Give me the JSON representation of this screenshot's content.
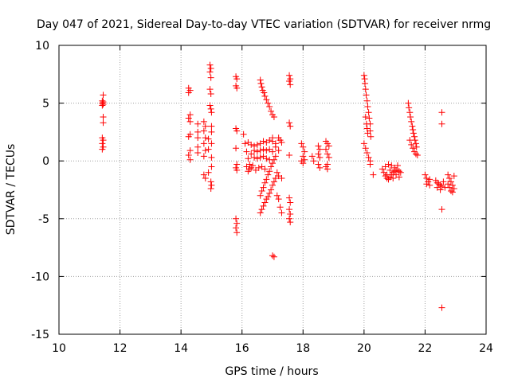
{
  "chart_data": {
    "type": "scatter",
    "title": "Day 047 of 2021, Sidereal Day-to-day VTEC variation (SDTVAR) for receiver nrmg",
    "xlabel": "GPS time / hours",
    "ylabel": "SDTVAR / TECUs",
    "xlim": [
      10,
      24
    ],
    "ylim": [
      -15,
      10
    ],
    "x_ticks": [
      10,
      12,
      14,
      16,
      18,
      20,
      22,
      24
    ],
    "y_ticks": [
      -15,
      -10,
      -5,
      0,
      5,
      10
    ],
    "grid": true,
    "marker": "+",
    "marker_color": "#ff0000",
    "series": [
      {
        "name": "SDTVAR",
        "points": [
          [
            11.45,
            5.7
          ],
          [
            11.42,
            5.2
          ],
          [
            11.45,
            5.1
          ],
          [
            11.42,
            5.0
          ],
          [
            11.45,
            4.9
          ],
          [
            11.42,
            4.8
          ],
          [
            11.45,
            3.8
          ],
          [
            11.45,
            3.3
          ],
          [
            11.42,
            2.0
          ],
          [
            11.45,
            1.8
          ],
          [
            11.42,
            1.5
          ],
          [
            11.45,
            1.2
          ],
          [
            11.42,
            1.0
          ],
          [
            14.25,
            6.3
          ],
          [
            14.3,
            6.1
          ],
          [
            14.25,
            5.9
          ],
          [
            14.3,
            4.0
          ],
          [
            14.25,
            3.7
          ],
          [
            14.3,
            3.4
          ],
          [
            14.3,
            2.3
          ],
          [
            14.25,
            2.1
          ],
          [
            14.3,
            0.9
          ],
          [
            14.25,
            0.5
          ],
          [
            14.3,
            0.1
          ],
          [
            14.55,
            3.2
          ],
          [
            14.55,
            2.5
          ],
          [
            14.55,
            2.0
          ],
          [
            14.55,
            1.2
          ],
          [
            14.55,
            0.7
          ],
          [
            14.75,
            3.4
          ],
          [
            14.8,
            3.0
          ],
          [
            14.75,
            2.6
          ],
          [
            14.8,
            2.0
          ],
          [
            14.75,
            1.5
          ],
          [
            14.8,
            0.9
          ],
          [
            14.75,
            0.4
          ],
          [
            14.75,
            -1.2
          ],
          [
            14.8,
            -1.5
          ],
          [
            14.9,
            -1.0
          ],
          [
            14.9,
            1.0
          ],
          [
            14.9,
            1.9
          ],
          [
            14.95,
            8.3
          ],
          [
            14.98,
            8.0
          ],
          [
            14.95,
            7.7
          ],
          [
            14.98,
            7.2
          ],
          [
            14.95,
            6.2
          ],
          [
            14.98,
            5.8
          ],
          [
            14.95,
            4.8
          ],
          [
            14.98,
            4.5
          ],
          [
            15.0,
            4.2
          ],
          [
            15.0,
            3.0
          ],
          [
            15.0,
            2.5
          ],
          [
            15.0,
            1.5
          ],
          [
            15.0,
            0.3
          ],
          [
            15.0,
            -0.5
          ],
          [
            14.98,
            -1.8
          ],
          [
            15.0,
            -2.1
          ],
          [
            14.98,
            -2.4
          ],
          [
            15.8,
            7.3
          ],
          [
            15.83,
            7.1
          ],
          [
            15.8,
            6.5
          ],
          [
            15.83,
            6.3
          ],
          [
            15.8,
            2.8
          ],
          [
            15.83,
            2.6
          ],
          [
            15.8,
            1.1
          ],
          [
            15.83,
            -0.3
          ],
          [
            15.8,
            -0.6
          ],
          [
            15.83,
            -0.8
          ],
          [
            15.8,
            -5.0
          ],
          [
            15.83,
            -5.4
          ],
          [
            15.8,
            -5.8
          ],
          [
            15.83,
            -6.2
          ],
          [
            16.05,
            2.3
          ],
          [
            16.1,
            1.5
          ],
          [
            16.15,
            0.8
          ],
          [
            16.2,
            0.2
          ],
          [
            16.25,
            -0.3
          ],
          [
            16.3,
            -0.6
          ],
          [
            16.15,
            -0.5
          ],
          [
            16.2,
            -0.9
          ],
          [
            16.25,
            -0.7
          ],
          [
            16.35,
            -0.4
          ],
          [
            16.2,
            1.6
          ],
          [
            16.3,
            1.4
          ],
          [
            16.4,
            1.3
          ],
          [
            16.5,
            1.4
          ],
          [
            16.6,
            1.5
          ],
          [
            16.7,
            1.7
          ],
          [
            16.8,
            1.6
          ],
          [
            16.3,
            0.6
          ],
          [
            16.4,
            0.3
          ],
          [
            16.5,
            0.2
          ],
          [
            16.6,
            0.3
          ],
          [
            16.7,
            0.4
          ],
          [
            16.8,
            0.2
          ],
          [
            16.9,
            0.1
          ],
          [
            16.4,
            0.9
          ],
          [
            16.5,
            0.8
          ],
          [
            16.6,
            0.9
          ],
          [
            16.7,
            1.0
          ],
          [
            16.8,
            0.9
          ],
          [
            16.9,
            1.0
          ],
          [
            17.0,
            0.8
          ],
          [
            16.45,
            -0.8
          ],
          [
            16.55,
            -0.6
          ],
          [
            16.65,
            -0.5
          ],
          [
            16.75,
            -0.7
          ],
          [
            16.9,
            1.8
          ],
          [
            17.0,
            1.7
          ],
          [
            17.1,
            1.5
          ],
          [
            17.0,
            2.0
          ],
          [
            17.1,
            1.2
          ],
          [
            17.2,
            0.9
          ],
          [
            16.6,
            7.0
          ],
          [
            16.62,
            6.7
          ],
          [
            16.65,
            6.4
          ],
          [
            16.68,
            6.1
          ],
          [
            16.72,
            5.9
          ],
          [
            16.75,
            5.6
          ],
          [
            16.8,
            5.3
          ],
          [
            16.85,
            5.0
          ],
          [
            16.9,
            4.7
          ],
          [
            16.95,
            4.3
          ],
          [
            17.0,
            4.0
          ],
          [
            17.05,
            3.8
          ],
          [
            16.6,
            -4.5
          ],
          [
            16.65,
            -4.2
          ],
          [
            16.7,
            -3.9
          ],
          [
            16.75,
            -3.6
          ],
          [
            16.8,
            -3.3
          ],
          [
            16.85,
            -3.1
          ],
          [
            16.9,
            -2.8
          ],
          [
            16.95,
            -2.5
          ],
          [
            17.0,
            -2.1
          ],
          [
            17.05,
            -1.8
          ],
          [
            17.1,
            -1.5
          ],
          [
            16.6,
            -3.0
          ],
          [
            16.65,
            -2.6
          ],
          [
            16.7,
            -2.3
          ],
          [
            16.75,
            -1.9
          ],
          [
            16.8,
            -1.6
          ],
          [
            16.85,
            -1.2
          ],
          [
            16.9,
            -0.9
          ],
          [
            16.95,
            -0.5
          ],
          [
            17.0,
            -0.2
          ],
          [
            17.05,
            0.1
          ],
          [
            17.1,
            0.4
          ],
          [
            17.0,
            -8.2
          ],
          [
            17.05,
            -8.3
          ],
          [
            17.15,
            -3.0
          ],
          [
            17.2,
            -3.3
          ],
          [
            17.25,
            -4.0
          ],
          [
            17.3,
            -4.5
          ],
          [
            17.15,
            -1.0
          ],
          [
            17.2,
            -1.3
          ],
          [
            17.3,
            -1.5
          ],
          [
            17.2,
            2.0
          ],
          [
            17.25,
            1.8
          ],
          [
            17.3,
            1.6
          ],
          [
            17.55,
            7.4
          ],
          [
            17.58,
            7.1
          ],
          [
            17.55,
            6.9
          ],
          [
            17.58,
            6.6
          ],
          [
            17.55,
            3.3
          ],
          [
            17.58,
            3.0
          ],
          [
            17.55,
            0.5
          ],
          [
            17.55,
            -3.2
          ],
          [
            17.58,
            -3.6
          ],
          [
            17.55,
            -4.2
          ],
          [
            17.58,
            -4.6
          ],
          [
            17.55,
            -5.0
          ],
          [
            17.58,
            -5.3
          ],
          [
            17.95,
            1.5
          ],
          [
            18.0,
            1.2
          ],
          [
            18.05,
            0.8
          ],
          [
            18.0,
            0.4
          ],
          [
            18.05,
            0.1
          ],
          [
            18.0,
            -0.2
          ],
          [
            17.95,
            0.0
          ],
          [
            18.3,
            0.4
          ],
          [
            18.35,
            0.0
          ],
          [
            18.5,
            1.3
          ],
          [
            18.55,
            1.0
          ],
          [
            18.5,
            0.6
          ],
          [
            18.55,
            0.3
          ],
          [
            18.5,
            -0.3
          ],
          [
            18.55,
            -0.6
          ],
          [
            18.75,
            1.7
          ],
          [
            18.8,
            1.5
          ],
          [
            18.85,
            1.3
          ],
          [
            18.75,
            1.0
          ],
          [
            18.8,
            0.6
          ],
          [
            18.85,
            0.3
          ],
          [
            18.8,
            -0.3
          ],
          [
            18.75,
            -0.5
          ],
          [
            18.8,
            -0.7
          ],
          [
            20.0,
            7.4
          ],
          [
            20.02,
            7.1
          ],
          [
            20.03,
            6.7
          ],
          [
            20.05,
            6.2
          ],
          [
            20.07,
            5.7
          ],
          [
            20.1,
            5.2
          ],
          [
            20.12,
            4.7
          ],
          [
            20.15,
            4.2
          ],
          [
            20.17,
            3.7
          ],
          [
            20.2,
            3.2
          ],
          [
            20.2,
            2.6
          ],
          [
            20.22,
            2.1
          ],
          [
            20.05,
            3.8
          ],
          [
            20.08,
            3.2
          ],
          [
            20.1,
            2.8
          ],
          [
            20.12,
            2.4
          ],
          [
            20.0,
            1.5
          ],
          [
            20.05,
            1.1
          ],
          [
            20.1,
            0.7
          ],
          [
            20.15,
            0.3
          ],
          [
            20.2,
            0.0
          ],
          [
            20.2,
            -0.3
          ],
          [
            20.3,
            -1.2
          ],
          [
            20.6,
            -0.7
          ],
          [
            20.65,
            -1.0
          ],
          [
            20.7,
            -1.3
          ],
          [
            20.75,
            -1.5
          ],
          [
            20.8,
            -1.6
          ],
          [
            20.85,
            -1.4
          ],
          [
            20.9,
            -1.2
          ],
          [
            20.95,
            -1.0
          ],
          [
            21.0,
            -0.9
          ],
          [
            21.05,
            -0.8
          ],
          [
            21.1,
            -0.8
          ],
          [
            21.15,
            -0.9
          ],
          [
            21.2,
            -1.0
          ],
          [
            20.7,
            -0.5
          ],
          [
            20.8,
            -0.3
          ],
          [
            20.9,
            -0.4
          ],
          [
            21.0,
            -0.6
          ],
          [
            21.1,
            -0.4
          ],
          [
            20.75,
            -1.2
          ],
          [
            20.85,
            -0.8
          ],
          [
            20.95,
            -1.5
          ],
          [
            21.05,
            -1.2
          ],
          [
            21.15,
            -1.4
          ],
          [
            21.45,
            5.0
          ],
          [
            21.47,
            4.6
          ],
          [
            21.5,
            4.2
          ],
          [
            21.52,
            3.8
          ],
          [
            21.55,
            3.4
          ],
          [
            21.58,
            3.0
          ],
          [
            21.6,
            2.7
          ],
          [
            21.62,
            2.4
          ],
          [
            21.65,
            2.1
          ],
          [
            21.67,
            1.8
          ],
          [
            21.7,
            1.5
          ],
          [
            21.72,
            1.2
          ],
          [
            21.5,
            1.8
          ],
          [
            21.55,
            1.4
          ],
          [
            21.6,
            1.1
          ],
          [
            21.65,
            0.8
          ],
          [
            21.7,
            0.6
          ],
          [
            21.75,
            0.5
          ],
          [
            22.0,
            -1.2
          ],
          [
            22.05,
            -1.5
          ],
          [
            22.1,
            -1.8
          ],
          [
            22.15,
            -1.6
          ],
          [
            22.05,
            -2.0
          ],
          [
            22.15,
            -2.1
          ],
          [
            22.35,
            -1.7
          ],
          [
            22.4,
            -1.9
          ],
          [
            22.45,
            -2.0
          ],
          [
            22.5,
            -2.1
          ],
          [
            22.55,
            -2.2
          ],
          [
            22.6,
            -1.8
          ],
          [
            22.65,
            -2.3
          ],
          [
            22.4,
            -2.3
          ],
          [
            22.5,
            -2.5
          ],
          [
            22.55,
            4.2
          ],
          [
            22.55,
            3.2
          ],
          [
            22.55,
            -4.2
          ],
          [
            22.55,
            -12.7
          ],
          [
            22.75,
            -1.2
          ],
          [
            22.8,
            -1.5
          ],
          [
            22.85,
            -1.8
          ],
          [
            22.9,
            -2.1
          ],
          [
            22.95,
            -2.4
          ],
          [
            22.75,
            -2.0
          ],
          [
            22.8,
            -2.3
          ],
          [
            22.85,
            -2.6
          ],
          [
            22.9,
            -2.7
          ],
          [
            22.95,
            -1.3
          ]
        ]
      }
    ]
  }
}
